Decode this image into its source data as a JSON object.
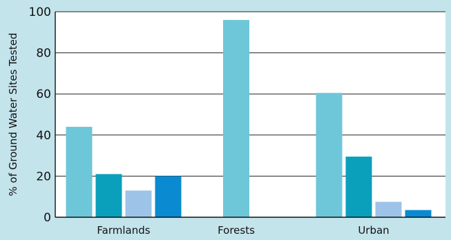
{
  "chart_data": {
    "type": "bar",
    "title": "",
    "xlabel": "",
    "ylabel": "% of Ground Water Sites Tested",
    "ylim": [
      0,
      100
    ],
    "yticks": [
      0,
      20,
      40,
      60,
      80,
      100
    ],
    "categories": [
      "Farmlands",
      "Forests",
      "Urban"
    ],
    "grid": true,
    "series": [
      {
        "color": "#6ec6d9",
        "values": [
          44,
          96,
          60.5
        ]
      },
      {
        "color": "#0aa0bc",
        "values": [
          21,
          null,
          29.5
        ]
      },
      {
        "color": "#9dc4e8",
        "values": [
          13,
          null,
          7.5
        ]
      },
      {
        "color": "#0a8ad0",
        "values": [
          20,
          null,
          3.5
        ]
      }
    ],
    "colors": {
      "background": "#c4e4ec",
      "plot_area": "#ffffff",
      "grid": "#222222"
    }
  }
}
